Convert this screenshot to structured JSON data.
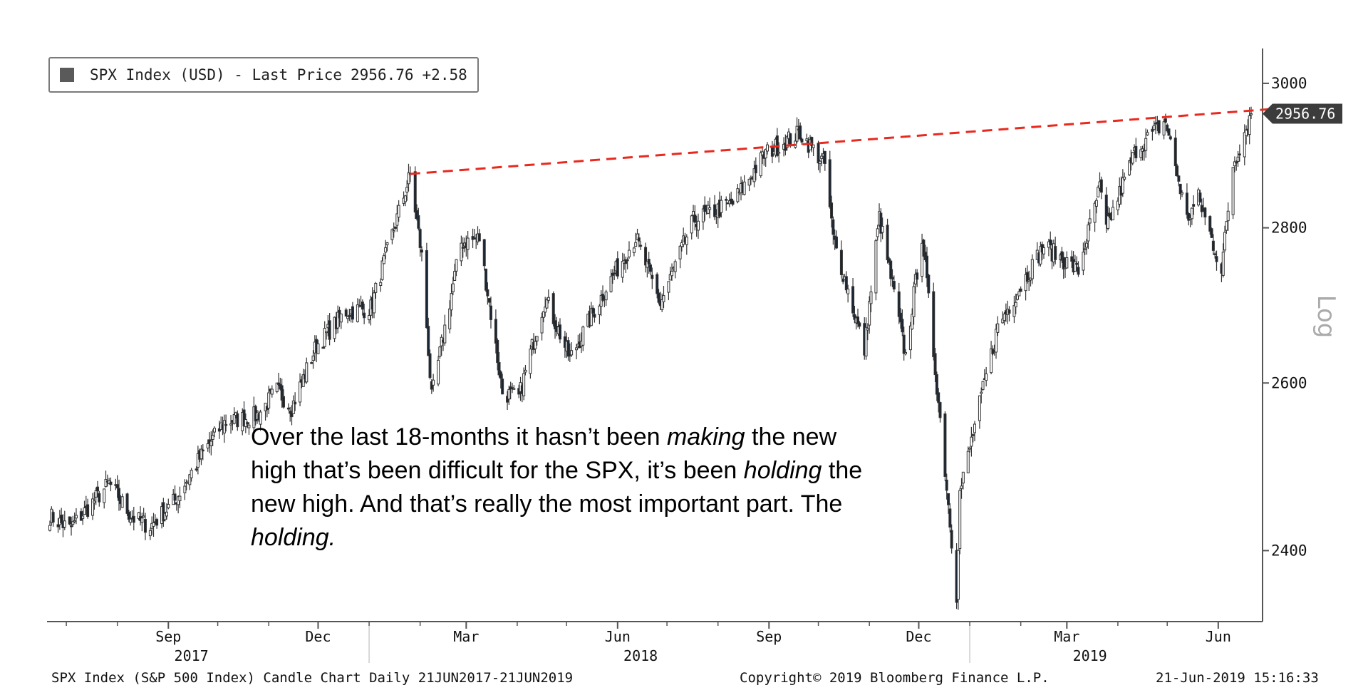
{
  "legend": {
    "title": "SPX Index (USD) - Last Price",
    "last_price": "2956.76",
    "change": "+2.58"
  },
  "annotation": {
    "part1": "Over the last 18-months it hasn’t been ",
    "em1": "making",
    "part2": " the new high that’s been difficult for the SPX, it’s been ",
    "em2": "holding",
    "part3": " the new high. And that’s really the most important part. The ",
    "em3": "holding."
  },
  "footer": {
    "left": "SPX Index (S&P 500 Index) Candle Chart  Daily 21JUN2017-21JUN2019",
    "center": "Copyright© 2019 Bloomberg Finance L.P.",
    "right": "21-Jun-2019 15:16:33"
  },
  "colors": {
    "up_fill": "#ffffff",
    "down_fill": "#1a2633",
    "wick": "#333333",
    "trendline": "#e8291e",
    "axis": "#555555"
  },
  "chart_data": {
    "type": "candlestick",
    "title": "SPX Index (USD) - Last Price 2956.76 +2.58",
    "scale": "log",
    "y_axis_label": "Log",
    "y_ticks": [
      2400,
      2600,
      2800,
      3000
    ],
    "ylim": [
      2320,
      3040
    ],
    "x_range": [
      "2017-06-21",
      "2019-06-21"
    ],
    "x_ticks": [
      {
        "label": "Sep",
        "date": "2017-09-01"
      },
      {
        "label": "Dec",
        "date": "2017-12-01"
      },
      {
        "label": "Mar",
        "date": "2018-03-01"
      },
      {
        "label": "Jun",
        "date": "2018-06-01"
      },
      {
        "label": "Sep",
        "date": "2018-09-01"
      },
      {
        "label": "Dec",
        "date": "2018-12-01"
      },
      {
        "label": "Mar",
        "date": "2019-03-01"
      },
      {
        "label": "Jun",
        "date": "2019-06-01"
      }
    ],
    "year_labels": [
      {
        "label": "2017",
        "date": "2017-09-15"
      },
      {
        "label": "2018",
        "date": "2018-06-15"
      },
      {
        "label": "2019",
        "date": "2019-03-15"
      }
    ],
    "last_price_tag": "2956.76",
    "trendline": [
      {
        "date": "2018-01-26",
        "value": 2873
      },
      {
        "date": "2019-06-21",
        "value": 2960
      }
    ],
    "anchors": [
      [
        "2017-06-21",
        2440
      ],
      [
        "2017-07-03",
        2425
      ],
      [
        "2017-07-27",
        2478
      ],
      [
        "2017-08-10",
        2438
      ],
      [
        "2017-08-21",
        2428
      ],
      [
        "2017-09-05",
        2458
      ],
      [
        "2017-09-20",
        2508
      ],
      [
        "2017-10-05",
        2552
      ],
      [
        "2017-10-25",
        2560
      ],
      [
        "2017-11-06",
        2591
      ],
      [
        "2017-11-15",
        2570
      ],
      [
        "2017-11-30",
        2647
      ],
      [
        "2017-12-18",
        2690
      ],
      [
        "2018-01-02",
        2695
      ],
      [
        "2018-01-26",
        2872
      ],
      [
        "2018-02-02",
        2762
      ],
      [
        "2018-02-08",
        2581
      ],
      [
        "2018-02-26",
        2780
      ],
      [
        "2018-03-09",
        2786
      ],
      [
        "2018-03-23",
        2588
      ],
      [
        "2018-04-02",
        2582
      ],
      [
        "2018-04-18",
        2708
      ],
      [
        "2018-05-03",
        2630
      ],
      [
        "2018-05-25",
        2721
      ],
      [
        "2018-06-12",
        2787
      ],
      [
        "2018-06-27",
        2700
      ],
      [
        "2018-07-17",
        2810
      ],
      [
        "2018-08-10",
        2833
      ],
      [
        "2018-08-30",
        2902
      ],
      [
        "2018-09-20",
        2930
      ],
      [
        "2018-10-05",
        2886
      ],
      [
        "2018-10-10",
        2786
      ],
      [
        "2018-10-29",
        2641
      ],
      [
        "2018-11-07",
        2814
      ],
      [
        "2018-11-23",
        2633
      ],
      [
        "2018-12-03",
        2790
      ],
      [
        "2018-12-10",
        2638
      ],
      [
        "2018-12-24",
        2351
      ],
      [
        "2018-12-26",
        2467
      ],
      [
        "2019-01-18",
        2671
      ],
      [
        "2019-02-15",
        2776
      ],
      [
        "2019-03-08",
        2743
      ],
      [
        "2019-03-21",
        2854
      ],
      [
        "2019-03-25",
        2798
      ],
      [
        "2019-04-12",
        2907
      ],
      [
        "2019-04-30",
        2946
      ],
      [
        "2019-05-13",
        2811
      ],
      [
        "2019-05-20",
        2840
      ],
      [
        "2019-06-03",
        2744
      ],
      [
        "2019-06-10",
        2886
      ],
      [
        "2019-06-21",
        2956.76
      ]
    ]
  }
}
